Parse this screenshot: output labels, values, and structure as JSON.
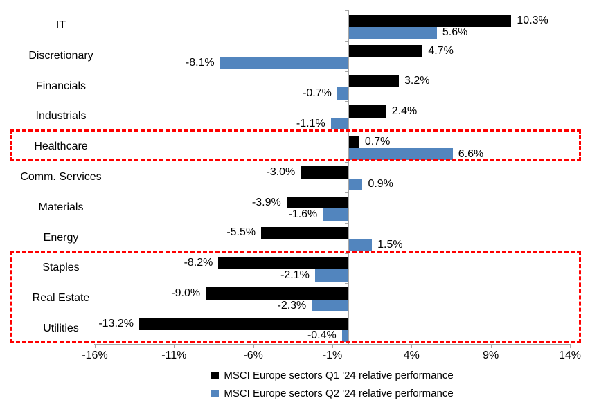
{
  "chart_data": {
    "type": "bar",
    "orientation": "horizontal",
    "title": "",
    "categories": [
      "IT",
      "Discretionary",
      "Financials",
      "Industrials",
      "Healthcare",
      "Comm. Services",
      "Materials",
      "Energy",
      "Staples",
      "Real Estate",
      "Utilities"
    ],
    "series": [
      {
        "name": "MSCI Europe sectors Q1 '24 relative performance",
        "color": "#000000",
        "values": [
          10.3,
          4.7,
          3.2,
          2.4,
          0.7,
          -3.0,
          -3.9,
          -5.5,
          -8.2,
          -9.0,
          -13.2
        ],
        "labels": [
          "10.3%",
          "4.7%",
          "3.2%",
          "2.4%",
          "0.7%",
          "-3.0%",
          "-3.9%",
          "-5.5%",
          "-8.2%",
          "-9.0%",
          "-13.2%"
        ]
      },
      {
        "name": "MSCI Europe sectors Q2 '24 relative performance",
        "color": "#5285BE",
        "values": [
          5.6,
          -8.1,
          -0.7,
          -1.1,
          6.6,
          0.9,
          -1.6,
          1.5,
          -2.1,
          -2.3,
          -0.4
        ],
        "labels": [
          "5.6%",
          "-8.1%",
          "-0.7%",
          "-1.1%",
          "6.6%",
          "0.9%",
          "-1.6%",
          "1.5%",
          "-2.1%",
          "-2.3%",
          "-0.4%"
        ]
      }
    ],
    "x_axis": {
      "min": -16,
      "max": 14,
      "tick_step": 5,
      "tick_labels": [
        "-16%",
        "-11%",
        "-6%",
        "-1%",
        "4%",
        "9%",
        "14%"
      ]
    },
    "grid": "off",
    "legend_position": "bottom",
    "axis_color": "#A6A6A6",
    "highlight_color": "#FF0000",
    "highlights": [
      {
        "name": "healthcare-highlight",
        "categories": [
          "Healthcare"
        ]
      },
      {
        "name": "defensives-highlight",
        "categories": [
          "Staples",
          "Real Estate",
          "Utilities"
        ]
      }
    ]
  }
}
